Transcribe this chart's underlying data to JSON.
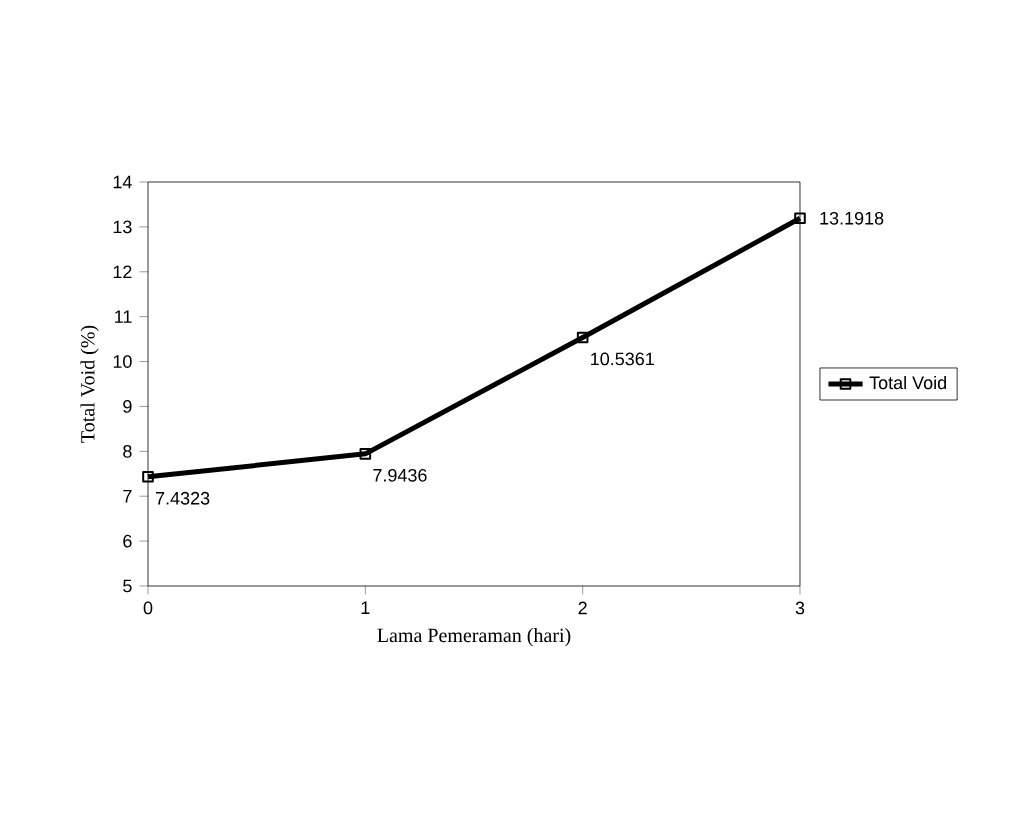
{
  "chart_data": {
    "type": "line",
    "xlabel": "Lama Pemeraman (hari)",
    "ylabel": "Total Void (%)",
    "x": [
      0,
      1,
      2,
      3
    ],
    "series": [
      {
        "name": "Total Void",
        "color": "#000000",
        "values": [
          7.4323,
          7.9436,
          10.5361,
          13.1918
        ]
      }
    ],
    "xlim": [
      0,
      3
    ],
    "xticks": [
      0,
      1,
      2,
      3
    ],
    "ylim": [
      5,
      14
    ],
    "yticks": [
      5,
      6,
      7,
      8,
      9,
      10,
      11,
      12,
      13,
      14
    ],
    "data_labels": true,
    "legend": "right",
    "marker": "square",
    "line_style": "solid",
    "grid": false
  }
}
